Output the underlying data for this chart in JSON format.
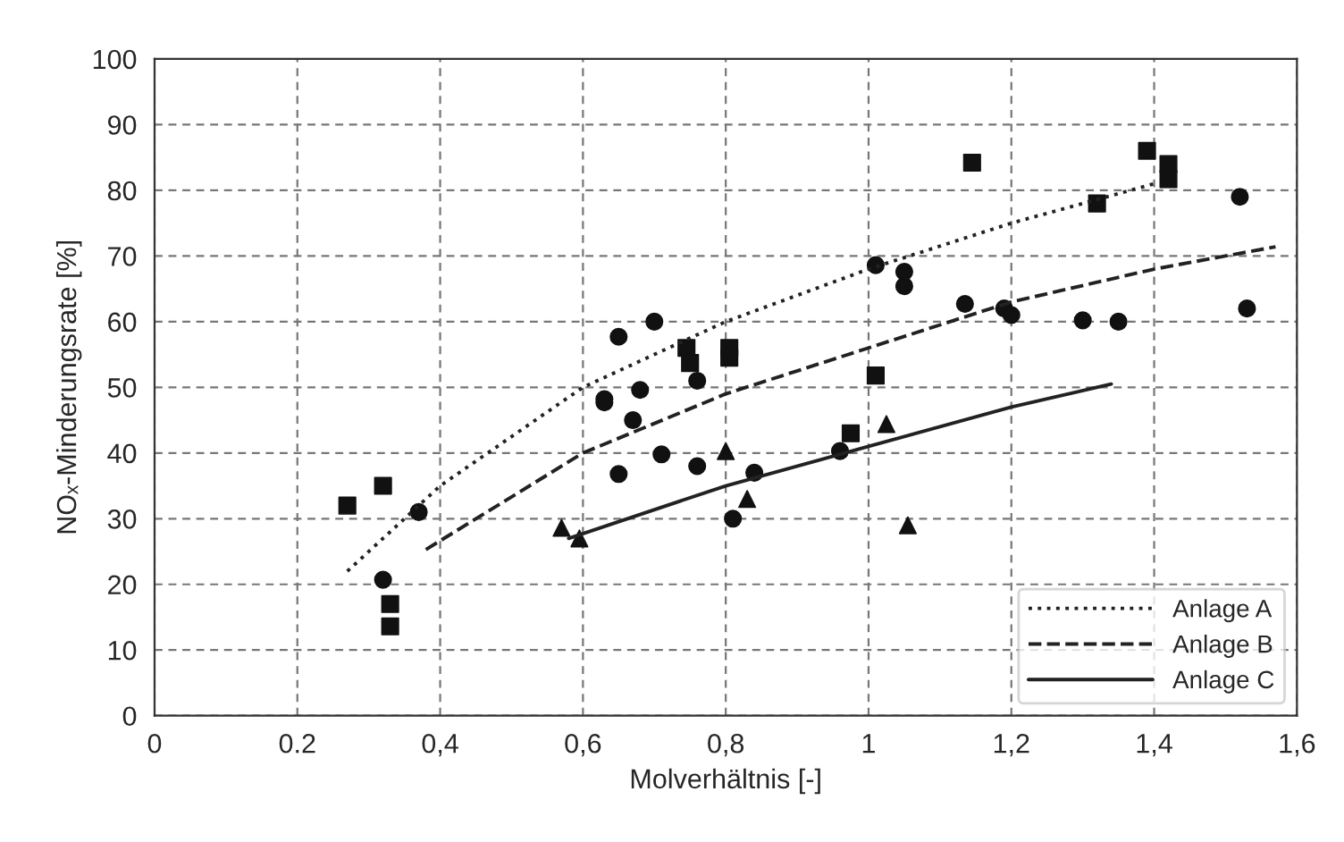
{
  "chart_data": {
    "type": "scatter",
    "xlabel": "Molverhältnis [-]",
    "ylabel": "NOₓ-Minderungsrate [%]",
    "xlim": [
      0,
      1.6
    ],
    "ylim": [
      0,
      100
    ],
    "xticks": [
      0,
      {
        "value": 0.2,
        "label": "0.2"
      },
      {
        "value": 0.4,
        "label": "0,4"
      },
      {
        "value": 0.6,
        "label": "0,6"
      },
      {
        "value": 0.8,
        "label": "0,8"
      },
      1,
      {
        "value": 1.2,
        "label": "1,2"
      },
      {
        "value": 1.4,
        "label": "1,4"
      },
      {
        "value": 1.6,
        "label": "1,6"
      }
    ],
    "yticks": [
      0,
      10,
      20,
      30,
      40,
      50,
      60,
      70,
      80,
      90,
      100
    ],
    "grid": true,
    "legend": "bottom right",
    "series": [
      {
        "marker": "square",
        "color": "#111111",
        "x": [
          0.27,
          0.32,
          0.33,
          0.33,
          0.745,
          0.75,
          0.805,
          0.805,
          0.975,
          1.01,
          1.145,
          1.32,
          1.39,
          1.42,
          1.42
        ],
        "values": [
          32,
          35,
          17,
          13.6,
          56,
          53.7,
          56,
          54.5,
          43,
          51.8,
          84.2,
          78,
          86,
          84,
          81.7
        ]
      },
      {
        "marker": "circle",
        "color": "#111111",
        "x": [
          0.32,
          0.37,
          0.63,
          0.63,
          0.65,
          0.65,
          0.67,
          0.68,
          0.7,
          0.71,
          0.76,
          0.76,
          0.81,
          0.84,
          0.96,
          1.01,
          1.05,
          1.05,
          1.135,
          1.19,
          1.2,
          1.3,
          1.35,
          1.52,
          1.53
        ],
        "values": [
          20.7,
          31,
          47.7,
          48.2,
          36.8,
          57.7,
          45,
          49.6,
          60,
          39.8,
          38,
          51,
          30,
          37,
          40.3,
          68.6,
          67.6,
          65.4,
          62.7,
          62,
          61,
          60.2,
          60,
          79,
          62
        ]
      },
      {
        "marker": "triangle",
        "color": "#111111",
        "x": [
          0.57,
          0.595,
          0.8,
          0.83,
          1.025,
          1.055
        ],
        "values": [
          28.6,
          27,
          40.3,
          33,
          44.4,
          29
        ]
      },
      {
        "type": "line",
        "name": "Anlage A",
        "line_style": "dotted",
        "color": "#222222",
        "x": [
          0.27,
          0.4,
          0.6,
          0.8,
          1.0,
          1.2,
          1.4
        ],
        "values": [
          22,
          35,
          50,
          60,
          68,
          75,
          81
        ]
      },
      {
        "type": "line",
        "name": "Anlage B",
        "line_style": "dashed",
        "color": "#222222",
        "x": [
          0.38,
          0.6,
          0.8,
          1.0,
          1.2,
          1.4,
          1.57
        ],
        "values": [
          25.3,
          40,
          49,
          56,
          63,
          68,
          71.4
        ]
      },
      {
        "type": "line",
        "name": "Anlage C",
        "line_style": "solid",
        "color": "#222222",
        "x": [
          0.58,
          0.8,
          1.0,
          1.2,
          1.34
        ],
        "values": [
          27,
          35,
          41,
          47,
          50.5
        ]
      }
    ]
  }
}
